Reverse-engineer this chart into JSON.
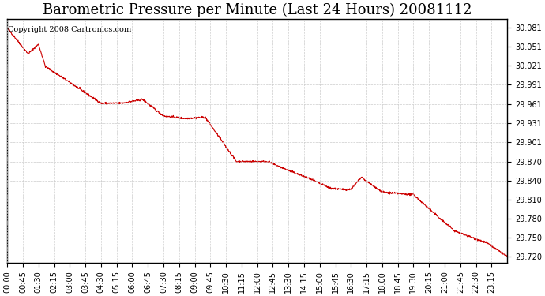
{
  "title": "Barometric Pressure per Minute (Last 24 Hours) 20081112",
  "copyright_text": "Copyright 2008 Cartronics.com",
  "line_color": "#cc0000",
  "background_color": "#ffffff",
  "grid_color": "#cccccc",
  "border_color": "#000000",
  "y_min": 29.71,
  "y_max": 30.095,
  "y_ticks": [
    29.72,
    29.75,
    29.78,
    29.81,
    29.84,
    29.87,
    29.901,
    29.931,
    29.961,
    29.991,
    30.021,
    30.051,
    30.081
  ],
  "x_labels": [
    "00:00",
    "00:45",
    "01:30",
    "02:15",
    "03:00",
    "03:45",
    "04:30",
    "05:15",
    "06:00",
    "06:45",
    "07:30",
    "08:15",
    "09:00",
    "09:45",
    "10:30",
    "11:15",
    "12:00",
    "12:45",
    "13:30",
    "14:15",
    "15:00",
    "15:45",
    "16:30",
    "17:15",
    "18:00",
    "18:45",
    "19:30",
    "20:15",
    "21:00",
    "21:45",
    "22:30",
    "23:15"
  ],
  "title_fontsize": 13,
  "tick_fontsize": 7,
  "copyright_fontsize": 7,
  "keypoints_x": [
    0,
    60,
    90,
    110,
    180,
    270,
    330,
    390,
    450,
    510,
    570,
    660,
    750,
    810,
    870,
    930,
    960,
    990,
    1020,
    1050,
    1080,
    1110,
    1170,
    1230,
    1290,
    1380,
    1440
  ],
  "keypoints_y": [
    30.081,
    30.04,
    30.055,
    30.02,
    29.995,
    29.962,
    29.962,
    29.968,
    29.942,
    29.938,
    29.94,
    29.87,
    29.87,
    29.856,
    29.843,
    29.828,
    29.826,
    29.826,
    29.845,
    29.833,
    29.822,
    29.82,
    29.818,
    29.788,
    29.76,
    29.742,
    29.72
  ]
}
